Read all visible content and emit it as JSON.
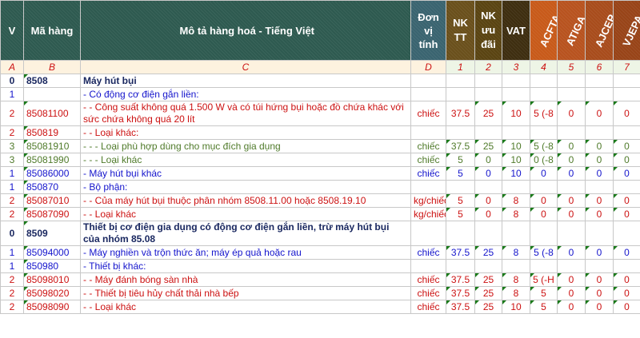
{
  "headers": {
    "v": "V",
    "code": "Mã hàng",
    "desc": "Mô tả hàng hoá - Tiếng Việt",
    "unit": "Đơn vị tính",
    "nktt": "NK TT",
    "nkud": "NK ưu đãi",
    "vat": "VAT",
    "acfta": "ACFTA",
    "atiga": "ATIGA",
    "ajcep": "AJCEP",
    "vjepa": "VJEPA"
  },
  "header_colors": {
    "base": "#2e5a50",
    "unit": "#3a6470",
    "nktt": "#6a501c",
    "nkud": "#5a4412",
    "vat": "#3e2e10",
    "acfta": "#c85a1a",
    "atiga": "#b8531f",
    "ajcep": "#a84c1c",
    "vjepa": "#984418"
  },
  "letters": [
    "A",
    "B",
    "C",
    "D",
    "1",
    "2",
    "3",
    "4",
    "5",
    "6",
    "7"
  ],
  "rows": [
    {
      "v": "0",
      "code": "8508",
      "desc": "Máy hút bụi",
      "unit": "",
      "vals": [
        "",
        "",
        "",
        "",
        "",
        "",
        ""
      ]
    },
    {
      "v": "1",
      "code": "",
      "desc": "- Có động cơ điện gắn liền:",
      "unit": "",
      "vals": [
        "",
        "",
        "",
        "",
        "",
        "",
        ""
      ]
    },
    {
      "v": "2",
      "code": "85081100",
      "desc": "- - Công suất không quá 1.500 W và có túi hứng bụi hoặc đồ chứa khác với sức chứa không quá 20 lít",
      "unit": "chiếc",
      "vals": [
        "37.5",
        "25",
        "10",
        "5 (-8",
        "0",
        "0",
        "0"
      ]
    },
    {
      "v": "2",
      "code": "850819",
      "desc": "- - Loại khác:",
      "unit": "",
      "vals": [
        "",
        "",
        "",
        "",
        "",
        "",
        ""
      ]
    },
    {
      "v": "3",
      "code": "85081910",
      "desc": "- - - Loại phù hợp dùng cho mục đích gia dụng",
      "unit": "chiếc",
      "vals": [
        "37.5",
        "25",
        "10",
        "5 (-8",
        "0",
        "0",
        "0"
      ]
    },
    {
      "v": "3",
      "code": "85081990",
      "desc": "- - - Loại khác",
      "unit": "chiếc",
      "vals": [
        "5",
        "0",
        "10",
        "0 (-8",
        "0",
        "0",
        "0"
      ]
    },
    {
      "v": "1",
      "code": "85086000",
      "desc": "- Máy hút bụi khác",
      "unit": "chiếc",
      "vals": [
        "5",
        "0",
        "10",
        "0",
        "0",
        "0",
        "0"
      ]
    },
    {
      "v": "1",
      "code": "850870",
      "desc": "- Bộ phận:",
      "unit": "",
      "vals": [
        "",
        "",
        "",
        "",
        "",
        "",
        ""
      ]
    },
    {
      "v": "2",
      "code": "85087010",
      "desc": "- - Của máy hút bụi thuộc phân nhóm 8508.11.00 hoặc 8508.19.10",
      "unit": "kg/chiếc",
      "vals": [
        "5",
        "0",
        "8",
        "0",
        "0",
        "0",
        "0"
      ]
    },
    {
      "v": "2",
      "code": "85087090",
      "desc": "- - Loại khác",
      "unit": "kg/chiếc",
      "vals": [
        "5",
        "0",
        "8",
        "0",
        "0",
        "0",
        "0"
      ]
    },
    {
      "v": "0",
      "code": "8509",
      "desc": "Thiết bị cơ điện gia dụng có động cơ điện gắn liền, trừ máy hút bụi của nhóm 85.08",
      "unit": "",
      "vals": [
        "",
        "",
        "",
        "",
        "",
        "",
        ""
      ]
    },
    {
      "v": "1",
      "code": "85094000",
      "desc": "- Máy nghiền và trộn thức ăn; máy ép quả hoặc rau",
      "unit": "chiếc",
      "vals": [
        "37.5",
        "25",
        "8",
        "5 (-8",
        "0",
        "0",
        "0"
      ]
    },
    {
      "v": "1",
      "code": "850980",
      "desc": "- Thiết bị khác:",
      "unit": "",
      "vals": [
        "",
        "",
        "",
        "",
        "",
        "",
        ""
      ]
    },
    {
      "v": "2",
      "code": "85098010",
      "desc": "- - Máy đánh bóng sàn nhà",
      "unit": "chiếc",
      "vals": [
        "37.5",
        "25",
        "8",
        "5 (-H",
        "0",
        "0",
        "0"
      ]
    },
    {
      "v": "2",
      "code": "85098020",
      "desc": "- - Thiết bị tiêu hủy chất thải nhà bếp",
      "unit": "chiếc",
      "vals": [
        "37.5",
        "25",
        "8",
        "5",
        "0",
        "0",
        "0"
      ]
    },
    {
      "v": "2",
      "code": "85098090",
      "desc": "- - Loại khác",
      "unit": "chiếc",
      "vals": [
        "37.5",
        "25",
        "10",
        "5",
        "0",
        "0",
        "0"
      ]
    }
  ]
}
